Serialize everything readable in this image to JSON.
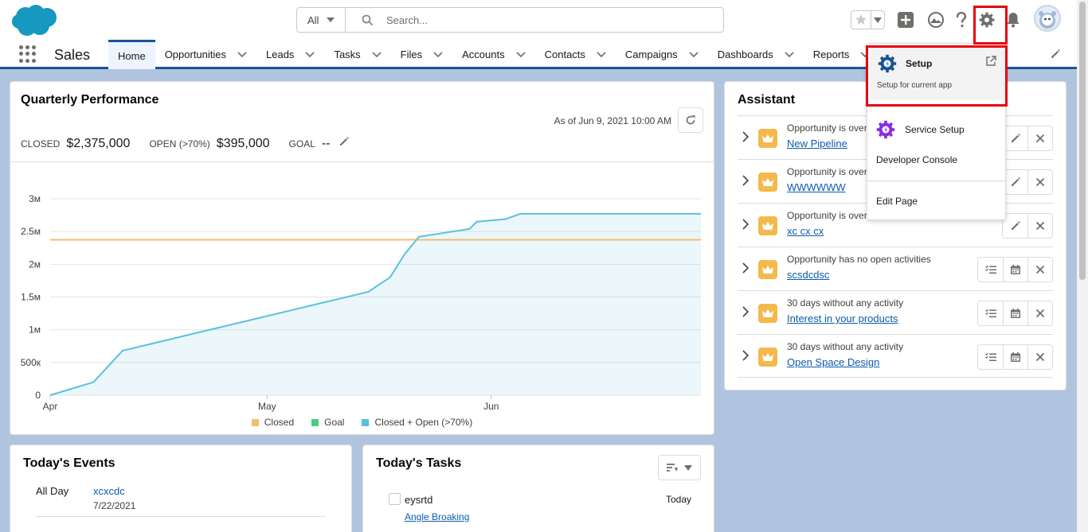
{
  "header": {
    "search_scope": "All",
    "search_placeholder": "Search..."
  },
  "nav": {
    "app_name": "Sales",
    "tabs": [
      {
        "label": "Home",
        "active": true,
        "has_menu": false
      },
      {
        "label": "Opportunities",
        "has_menu": true
      },
      {
        "label": "Leads",
        "has_menu": true
      },
      {
        "label": "Tasks",
        "has_menu": true
      },
      {
        "label": "Files",
        "has_menu": true
      },
      {
        "label": "Accounts",
        "has_menu": true
      },
      {
        "label": "Contacts",
        "has_menu": true
      },
      {
        "label": "Campaigns",
        "has_menu": true
      },
      {
        "label": "Dashboards",
        "has_menu": true
      },
      {
        "label": "Reports",
        "has_menu": true
      }
    ]
  },
  "quarterly": {
    "title": "Quarterly Performance",
    "as_of": "As of Jun 9, 2021 10:00 AM",
    "closed_label": "CLOSED",
    "closed_value": "$2,375,000",
    "open_label": "OPEN (>70%)",
    "open_value": "$395,000",
    "goal_label": "GOAL",
    "goal_value": "--"
  },
  "chart_data": {
    "type": "area",
    "y_ticks": [
      "3м",
      "2.5м",
      "2м",
      "1.5м",
      "1м",
      "500к",
      "0"
    ],
    "ylim": [
      0,
      3000000
    ],
    "x_ticks": [
      "Apr",
      "May",
      "Jun"
    ],
    "legend": [
      "Closed",
      "Goal",
      "Closed + Open (>70%)"
    ],
    "colors": {
      "closed": "#f4bc6c",
      "goal": "#4bca81",
      "closed_open": "#5bc0de"
    },
    "closed_line_value": 2375000,
    "series": [
      {
        "name": "Closed + Open (>70%)",
        "points": [
          [
            "Apr 1",
            0
          ],
          [
            "Apr 4",
            100000
          ],
          [
            "Apr 7",
            200000
          ],
          [
            "Apr 11",
            680000
          ],
          [
            "May 15",
            1580000
          ],
          [
            "May 18",
            1800000
          ],
          [
            "May 20",
            2150000
          ],
          [
            "May 22",
            2420000
          ],
          [
            "May 29",
            2540000
          ],
          [
            "May 30",
            2650000
          ],
          [
            "Jun 3",
            2690000
          ],
          [
            "Jun 5",
            2770000
          ],
          [
            "Jun 30",
            2770000
          ]
        ]
      }
    ]
  },
  "events": {
    "title": "Today's Events",
    "rows": [
      {
        "when": "All Day",
        "name": "xcxcdc",
        "date": "7/22/2021"
      }
    ]
  },
  "tasks": {
    "title": "Today's Tasks",
    "rows": [
      {
        "name": "eysrtd",
        "related": "Angle Broaking",
        "due": "Today"
      }
    ]
  },
  "assistant": {
    "title": "Assistant",
    "rows": [
      {
        "text": "Opportunity is overdue",
        "link": "New Pipeline",
        "actions": [
          "edit",
          "close"
        ]
      },
      {
        "text": "Opportunity is overdue",
        "link": "WWWWWW",
        "actions": [
          "edit",
          "close"
        ]
      },
      {
        "text": "Opportunity is overdue",
        "link": "xc cx cx",
        "actions": [
          "edit",
          "close"
        ]
      },
      {
        "text": "Opportunity has no open activities",
        "link": "scsdcdsc",
        "actions": [
          "task",
          "event",
          "close"
        ]
      },
      {
        "text": "30 days without any activity",
        "link": "Interest in your products",
        "actions": [
          "task",
          "event",
          "close"
        ]
      },
      {
        "text": "30 days without any activity",
        "link": "Open Space Design",
        "actions": [
          "task",
          "event",
          "close"
        ]
      }
    ]
  },
  "setup_menu": {
    "setup_title": "Setup",
    "setup_sub": "Setup for current app",
    "service_setup": "Service Setup",
    "developer_console": "Developer Console",
    "edit_page": "Edit Page"
  }
}
